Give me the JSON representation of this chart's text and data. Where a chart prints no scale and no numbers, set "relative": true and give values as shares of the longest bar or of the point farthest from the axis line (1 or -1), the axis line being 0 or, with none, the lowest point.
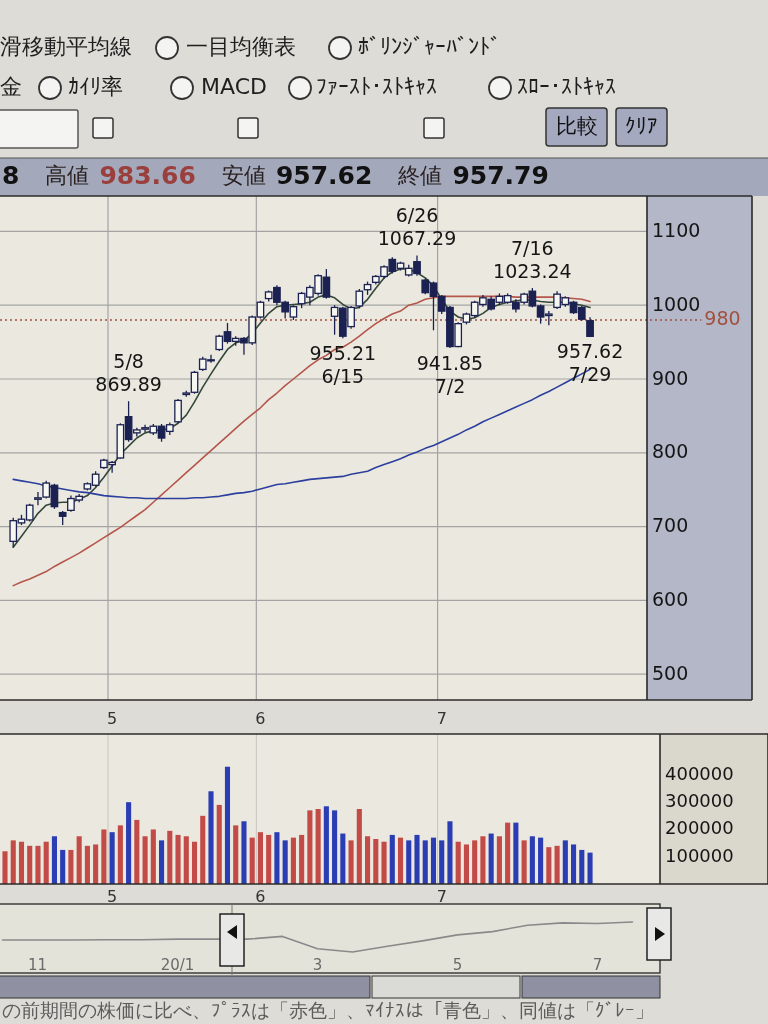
{
  "chart_data": [
    {
      "type": "other",
      "annotations": [
        "滑移動平均線",
        "一目均衡表",
        "ﾎﾞﾘﾝｼﾞｬｰﾊﾞﾝﾄﾞ",
        "金",
        "ｶｲﾘ率",
        "MACD",
        "ﾌｧｰｽﾄ･ｽﾄｷｬｽ",
        "ｽﾛｰ･ｽﾄｷｬｽ",
        "比較",
        "ｸﾘｱ"
      ]
    },
    {
      "type": "candlestick",
      "categories": [
        null,
        null,
        null,
        null,
        null,
        null,
        null,
        null,
        null,
        null,
        null,
        null,
        null,
        "5",
        null,
        null,
        null,
        null,
        null,
        null,
        null,
        null,
        null,
        null,
        null,
        null,
        null,
        null,
        null,
        null,
        null,
        "6",
        null,
        null,
        null,
        null,
        null,
        null,
        null,
        null,
        null,
        null,
        null,
        null,
        null,
        null,
        null,
        null,
        null,
        null,
        null,
        null,
        null,
        "7",
        null,
        null,
        null,
        null,
        null,
        null,
        null,
        null,
        null,
        null,
        null,
        null,
        null,
        null,
        null,
        null,
        null,
        null
      ],
      "ohlc": [
        null,
        [
          680,
          712,
          672,
          708
        ],
        [
          705,
          716,
          702,
          710
        ],
        [
          709,
          731,
          707,
          729
        ],
        [
          737,
          747,
          729,
          739
        ],
        [
          740,
          762,
          738,
          759
        ],
        [
          756,
          758,
          724,
          727
        ],
        [
          719,
          721,
          702,
          714
        ],
        [
          722,
          742,
          720,
          738
        ],
        [
          736,
          744,
          733,
          741
        ],
        [
          751,
          760,
          749,
          758
        ],
        [
          756,
          775,
          754,
          771
        ],
        [
          780,
          792,
          778,
          790
        ],
        [
          784,
          789,
          773,
          787
        ],
        [
          793,
          840,
          792,
          838
        ],
        [
          849,
          869.89,
          815,
          818
        ],
        [
          827,
          834,
          822,
          831
        ],
        [
          832,
          838,
          828,
          834
        ],
        [
          827,
          839,
          824,
          836
        ],
        [
          836,
          839,
          815,
          820
        ],
        [
          829,
          841,
          824,
          838
        ],
        [
          842,
          873,
          840,
          871
        ],
        [
          879,
          884,
          876,
          881
        ],
        [
          882,
          911,
          880,
          909
        ],
        [
          913,
          930,
          911,
          927
        ],
        [
          926,
          933,
          922,
          925
        ],
        [
          940,
          960,
          938,
          958
        ],
        [
          964,
          976,
          948,
          951
        ],
        [
          951,
          958,
          945,
          955
        ],
        [
          955,
          957,
          933,
          949
        ],
        [
          949,
          986,
          946,
          984
        ],
        [
          984,
          1006,
          982,
          1004
        ],
        [
          1009,
          1020,
          1005,
          1018
        ],
        [
          1024,
          1027,
          1000,
          1004
        ],
        [
          1004,
          1006,
          982,
          991
        ],
        [
          984,
          1000,
          980,
          998
        ],
        [
          1002,
          1018,
          996,
          1016
        ],
        [
          1011,
          1027,
          1000,
          1024
        ],
        [
          1016,
          1042,
          1013,
          1040
        ],
        [
          1038,
          1049,
          1009,
          1011
        ],
        [
          985,
          1000,
          960,
          997
        ],
        [
          996,
          998,
          955.21,
          958
        ],
        [
          971,
          999,
          968,
          997
        ],
        [
          999,
          1022,
          996,
          1019
        ],
        [
          1021,
          1032,
          1014,
          1028
        ],
        [
          1031,
          1041,
          1028,
          1039
        ],
        [
          1039,
          1054,
          1036,
          1052
        ],
        [
          1062,
          1065,
          1043,
          1046
        ],
        [
          1050,
          1059,
          1047,
          1057
        ],
        [
          1041,
          1055,
          1039,
          1050
        ],
        [
          1059,
          1067.29,
          1040,
          1043
        ],
        [
          1034,
          1036,
          1015,
          1017
        ],
        [
          1030,
          1032,
          966,
          1012
        ],
        [
          1012,
          1014,
          988,
          992
        ],
        [
          997,
          999,
          941.85,
          944
        ],
        [
          944,
          977,
          943,
          975
        ],
        [
          977,
          990,
          974,
          988
        ],
        [
          986,
          1006,
          983,
          1004
        ],
        [
          1001,
          1014,
          998,
          1010
        ],
        [
          1008,
          1012,
          993,
          995
        ],
        [
          1004,
          1016,
          1000,
          1012
        ],
        [
          1004,
          1016,
          1002,
          1013
        ],
        [
          1004,
          1008,
          990,
          995
        ],
        [
          1004,
          1017,
          1001,
          1015
        ],
        [
          1019,
          1023.24,
          997,
          999
        ],
        [
          999,
          1001,
          975,
          984
        ],
        [
          986,
          992,
          973,
          988
        ],
        [
          997,
          1019,
          995,
          1015
        ],
        [
          1001,
          1012,
          998,
          1010
        ],
        [
          1004,
          1006,
          988,
          990
        ],
        [
          997,
          999,
          979,
          981
        ],
        [
          979,
          983.66,
          957.62,
          957.79
        ]
      ],
      "color": "#1b2150",
      "series": [
        {
          "type": "line",
          "color": "#34483a",
          "values": [
            null,
            672,
            687,
            702,
            718,
            729,
            732,
            733,
            733,
            737,
            742,
            753,
            767,
            782,
            798,
            809,
            820,
            827,
            830,
            831,
            833,
            840,
            851,
            869,
            889,
            907,
            924,
            940,
            949,
            952,
            962,
            976,
            989,
            998,
            1000,
            1001,
            1002,
            1004,
            1011,
            1014,
            1010,
            1001,
            995,
            997,
            1008,
            1023,
            1037,
            1045,
            1049,
            1049,
            1044,
            1037,
            1026,
            1008,
            992,
            984,
            981,
            983,
            989,
            997,
            1001,
            1004,
            1006,
            1007,
            1007,
            1005,
            1004,
            1004,
            1004,
            1002,
            1000,
            997
          ]
        },
        {
          "type": "line",
          "color": "#b5564c",
          "values": [
            null,
            620,
            625,
            629,
            634,
            639,
            646,
            652,
            658,
            664,
            671,
            678,
            685,
            692,
            699,
            707,
            715,
            723,
            733,
            743,
            753,
            763,
            773,
            783,
            793,
            803,
            813,
            823,
            833,
            843,
            852,
            861,
            872,
            881,
            891,
            900,
            909,
            918,
            926,
            932,
            940,
            943,
            950,
            958,
            967,
            975,
            982,
            988,
            992,
            1000,
            1003,
            1008,
            1010,
            1012,
            1012,
            1012,
            1012,
            1012,
            1012,
            1012,
            1012,
            1012,
            1011,
            1011,
            1011,
            1011,
            1011,
            1011,
            1010,
            1009,
            1008,
            1005
          ]
        },
        {
          "type": "line",
          "color": "#2c3f9e",
          "values": [
            null,
            764,
            762,
            760,
            758,
            755,
            753,
            751,
            749,
            747,
            746,
            744,
            742,
            741,
            740,
            739,
            739,
            738,
            738,
            738,
            738,
            738,
            738,
            739,
            739,
            740,
            741,
            743,
            745,
            746,
            748,
            751,
            754,
            757,
            758,
            760,
            762,
            764,
            765,
            766,
            767,
            768,
            771,
            773,
            775,
            780,
            784,
            788,
            792,
            797,
            801,
            806,
            810,
            815,
            820,
            825,
            831,
            836,
            842,
            847,
            852,
            857,
            862,
            867,
            872,
            878,
            883,
            889,
            895,
            901,
            907,
            913
          ]
        }
      ],
      "ylim": [
        465,
        1148
      ],
      "yticks": [
        500,
        600,
        700,
        800,
        900,
        1000,
        1100
      ],
      "grid": true,
      "ref_lines": [
        {
          "axis": "y",
          "value": 980,
          "label": "980",
          "color": "#a0523f",
          "line_style": "dotted"
        }
      ],
      "annotations": [
        "8",
        "高値 983.66",
        "安値 957.62",
        "終値 957.79",
        {
          "text": "5/8 869.89",
          "y": 869.89
        },
        {
          "text": "955.21 6/15",
          "y": 955.21
        },
        {
          "text": "6/26 1067.29",
          "y": 1067.29
        },
        {
          "text": "941.85 7/2",
          "y": 941.85
        },
        {
          "text": "7/16 1023.24",
          "y": 1023.24
        },
        {
          "text": "957.62 7/29",
          "y": 957.62
        }
      ]
    },
    {
      "type": "bar",
      "categories": [
        null,
        null,
        null,
        null,
        null,
        null,
        null,
        null,
        null,
        null,
        null,
        null,
        null,
        "5",
        null,
        null,
        null,
        null,
        null,
        null,
        null,
        null,
        null,
        null,
        null,
        null,
        null,
        null,
        null,
        null,
        null,
        "6",
        null,
        null,
        null,
        null,
        null,
        null,
        null,
        null,
        null,
        null,
        null,
        null,
        null,
        null,
        null,
        null,
        null,
        null,
        null,
        null,
        null,
        "7",
        null,
        null,
        null,
        null,
        null,
        null,
        null,
        null,
        null,
        null,
        null,
        null,
        null,
        null,
        null,
        null,
        null,
        null
      ],
      "values": [
        120000,
        160000,
        155000,
        140000,
        140000,
        155000,
        175000,
        125000,
        125000,
        175000,
        140000,
        145000,
        200000,
        190000,
        215000,
        300000,
        235000,
        175000,
        200000,
        160000,
        195000,
        180000,
        175000,
        155000,
        250000,
        340000,
        290000,
        430000,
        215000,
        230000,
        170000,
        190000,
        180000,
        190000,
        160000,
        170000,
        180000,
        270000,
        275000,
        285000,
        270000,
        185000,
        160000,
        275000,
        175000,
        165000,
        155000,
        180000,
        170000,
        160000,
        180000,
        160000,
        170000,
        160000,
        230000,
        155000,
        145000,
        160000,
        175000,
        185000,
        175000,
        225000,
        225000,
        160000,
        175000,
        170000,
        135000,
        140000,
        160000,
        145000,
        125000,
        115000
      ],
      "colors": [
        "#c24b47",
        "#c24b47",
        "#c24b47",
        "#c24b47",
        "#c24b47",
        "#c24b47",
        "#2b3db3",
        "#2b3db3",
        "#c24b47",
        "#c24b47",
        "#c24b47",
        "#c24b47",
        "#c24b47",
        "#2b3db3",
        "#c24b47",
        "#2b3db3",
        "#c24b47",
        "#c24b47",
        "#c24b47",
        "#2b3db3",
        "#c24b47",
        "#c24b47",
        "#c24b47",
        "#c24b47",
        "#c24b47",
        "#2b3db3",
        "#c24b47",
        "#2b3db3",
        "#c24b47",
        "#2b3db3",
        "#c24b47",
        "#c24b47",
        "#c24b47",
        "#2b3db3",
        "#2b3db3",
        "#c24b47",
        "#c24b47",
        "#c24b47",
        "#c24b47",
        "#2b3db3",
        "#2b3db3",
        "#2b3db3",
        "#c24b47",
        "#c24b47",
        "#c24b47",
        "#c24b47",
        "#c24b47",
        "#2b3db3",
        "#c24b47",
        "#2b3db3",
        "#2b3db3",
        "#2b3db3",
        "#2b3db3",
        "#2b3db3",
        "#2b3db3",
        "#c24b47",
        "#c24b47",
        "#c24b47",
        "#c24b47",
        "#2b3db3",
        "#c24b47",
        "#c24b47",
        "#2b3db3",
        "#c24b47",
        "#2b3db3",
        "#2b3db3",
        "#c24b47",
        "#c24b47",
        "#2b3db3",
        "#2b3db3",
        "#2b3db3",
        "#2b3db3"
      ],
      "ylim": [
        0,
        550000
      ],
      "yticks": [
        100000,
        200000,
        300000,
        400000
      ],
      "grid": "x",
      "annotations": [
        "の前期間の株価に比べ、ﾌﾟﾗｽは「赤色」、ﾏｲﾅｽは「青色」、同値は「ｸﾞﾚｰ」"
      ]
    },
    {
      "type": "line",
      "relative": true,
      "categories": [
        null,
        "11",
        null,
        null,
        null,
        "20/1",
        null,
        null,
        null,
        "3",
        null,
        null,
        null,
        "5",
        null,
        null,
        null,
        "7",
        null
      ],
      "values": [
        0.4,
        0.4,
        0.4,
        0.41,
        0.41,
        0.43,
        0.43,
        0.43,
        0.52,
        0.11,
        0,
        0.19,
        0.37,
        0.57,
        0.68,
        0.89,
        0.97,
        0.95,
        1
      ],
      "color": "#8a8a8a"
    }
  ]
}
